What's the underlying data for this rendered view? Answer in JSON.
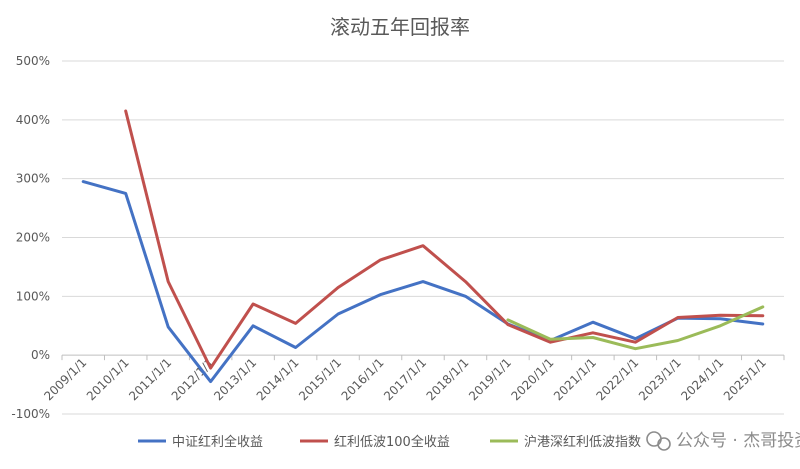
{
  "chart_data": {
    "type": "line",
    "title": "滚动五年回报率",
    "xlabel": "",
    "ylabel": "",
    "categories": [
      "2009/1/1",
      "2010/1/1",
      "2011/1/1",
      "2012/1/1",
      "2013/1/1",
      "2014/1/1",
      "2015/1/1",
      "2016/1/1",
      "2017/1/1",
      "2018/1/1",
      "2019/1/1",
      "2020/1/1",
      "2021/1/1",
      "2022/1/1",
      "2023/1/1",
      "2024/1/1",
      "2025/1/1"
    ],
    "ylim": [
      -100,
      500
    ],
    "yticks": [
      "-100%",
      "0%",
      "100%",
      "200%",
      "300%",
      "400%",
      "500%"
    ],
    "grid": true,
    "legend_position": "bottom",
    "series": [
      {
        "name": "中证红利全收益",
        "color": "#4472c4",
        "values": [
          295,
          275,
          48,
          -45,
          50,
          13,
          70,
          103,
          125,
          100,
          53,
          25,
          56,
          28,
          63,
          62,
          53
        ]
      },
      {
        "name": "红利低波100全收益",
        "color": "#c0504d",
        "values": [
          null,
          415,
          125,
          -22,
          87,
          54,
          115,
          162,
          186,
          125,
          52,
          22,
          38,
          22,
          64,
          68,
          67
        ]
      },
      {
        "name": "沪港深红利低波指数",
        "color": "#9bbb59",
        "values": [
          null,
          null,
          null,
          null,
          null,
          null,
          null,
          null,
          null,
          null,
          60,
          27,
          30,
          11,
          25,
          50,
          82
        ]
      }
    ]
  },
  "watermark": {
    "text": "公众号 · 杰哥投资",
    "icon": "wechat-icon"
  }
}
